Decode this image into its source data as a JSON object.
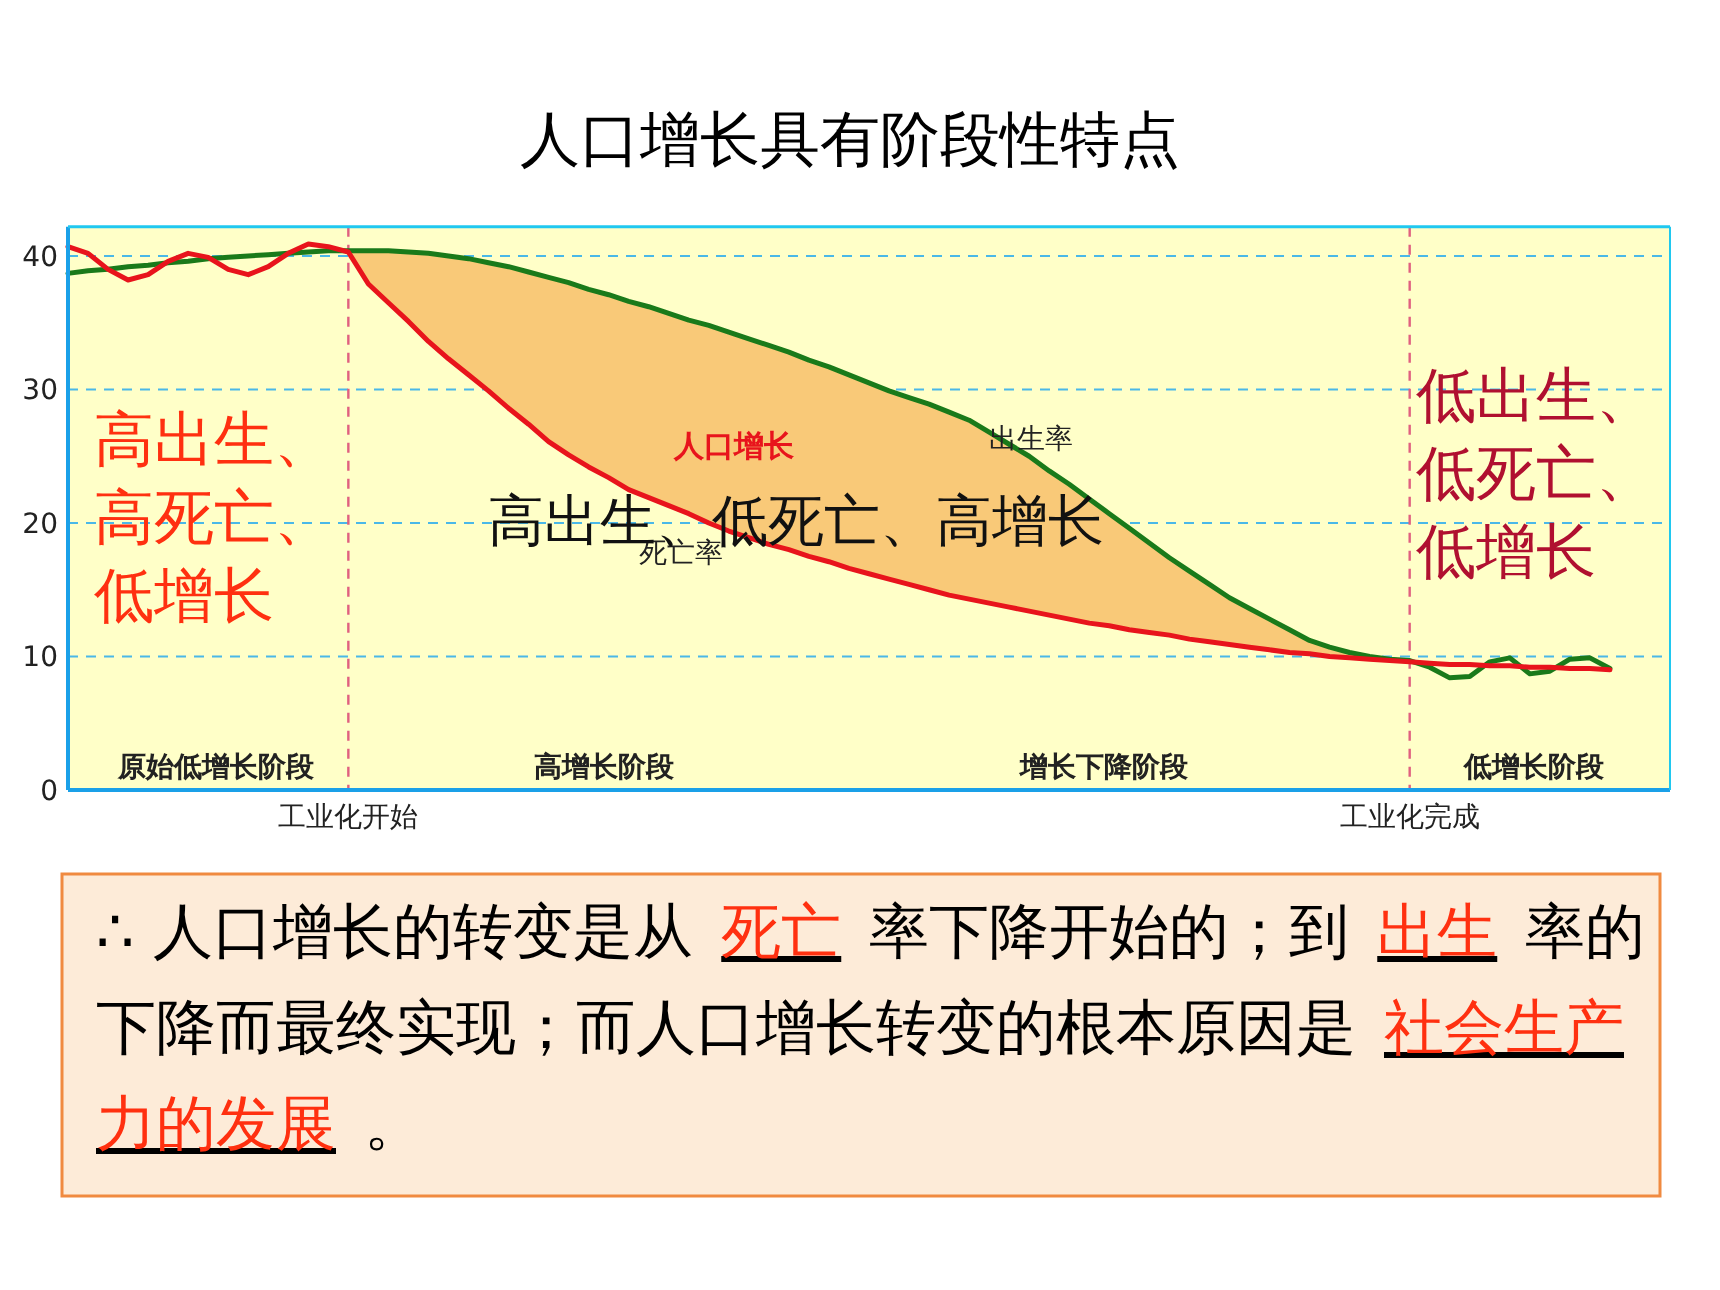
{
  "chart_data": {
    "type": "line",
    "title": "人口增长具有阶段性特点",
    "categories": [
      null,
      null,
      null,
      null,
      null,
      null,
      null,
      null,
      null,
      null,
      null,
      null,
      null,
      null,
      "工业化开始",
      null,
      null,
      null,
      null,
      null,
      null,
      null,
      null,
      null,
      null,
      null,
      null,
      null,
      null,
      null,
      null,
      null,
      null,
      null,
      null,
      null,
      null,
      null,
      null,
      null,
      null,
      null,
      null,
      null,
      null,
      null,
      null,
      null,
      null,
      null,
      null,
      null,
      null,
      null,
      null,
      null,
      null,
      null,
      null,
      null,
      null,
      null,
      null,
      null,
      null,
      null,
      null,
      "工业化完成",
      null,
      null,
      null,
      null,
      null,
      null,
      null,
      null,
      null,
      null,
      null,
      null,
      null
    ],
    "ylim": [
      0,
      42.2
    ],
    "yticks": [
      0,
      10,
      20,
      30,
      40
    ],
    "grid": "y",
    "series": [
      {
        "name": "出生率",
        "color": "#1a7a1a",
        "values": [
          38.7,
          38.9,
          39.0,
          39.2,
          39.3,
          39.5,
          39.6,
          39.8,
          39.9,
          40.0,
          40.1,
          40.2,
          40.3,
          40.4,
          40.4,
          40.4,
          40.4,
          40.3,
          40.2,
          40.0,
          39.8,
          39.5,
          39.2,
          38.8,
          38.4,
          38.0,
          37.5,
          37.1,
          36.6,
          36.2,
          35.7,
          35.2,
          34.8,
          34.3,
          33.8,
          33.3,
          32.8,
          32.2,
          31.7,
          31.1,
          30.5,
          29.9,
          29.4,
          28.9,
          28.3,
          27.7,
          26.8,
          25.9,
          25.0,
          23.9,
          22.9,
          21.8,
          20.7,
          19.6,
          18.5,
          17.4,
          16.4,
          15.4,
          14.4,
          13.6,
          12.8,
          12.0,
          11.2,
          10.7,
          10.3,
          10.0,
          9.8,
          9.7,
          9.2,
          8.4,
          8.5,
          9.6,
          9.9,
          8.7,
          8.9,
          9.8,
          9.9,
          9.1,
          null,
          null,
          null
        ],
        "lower": [
          null,
          null,
          null,
          null,
          null,
          null,
          null,
          null,
          null,
          null,
          null,
          null,
          null,
          null,
          40.3,
          37.9,
          36.5,
          35.1,
          33.6,
          32.3,
          31.1,
          29.9,
          28.6,
          27.4,
          26.1,
          25.1,
          24.2,
          23.4,
          22.5,
          21.9,
          21.3,
          20.7,
          20.0,
          19.4,
          18.9,
          18.4,
          18.0,
          17.5,
          17.1,
          16.6,
          16.2,
          15.8,
          15.4,
          15.0,
          14.6,
          14.3,
          14.0,
          13.7,
          13.4,
          13.1,
          12.8,
          12.5,
          12.3,
          12.0,
          11.8,
          11.6,
          11.3,
          11.1,
          10.9,
          10.7,
          10.5,
          10.3,
          10.2,
          10.0,
          9.9,
          9.8,
          9.7,
          9.6,
          null,
          null,
          null,
          null,
          null,
          null,
          null,
          null,
          null,
          null,
          null,
          null,
          null
        ],
        "upper": [
          null,
          null,
          null,
          null,
          null,
          null,
          null,
          null,
          null,
          null,
          null,
          null,
          null,
          null,
          40.4,
          40.4,
          40.4,
          40.3,
          40.2,
          40.0,
          39.8,
          39.5,
          39.2,
          38.8,
          38.4,
          38.0,
          37.5,
          37.1,
          36.6,
          36.2,
          35.7,
          35.2,
          34.8,
          34.3,
          33.8,
          33.3,
          32.8,
          32.2,
          31.7,
          31.1,
          30.5,
          29.9,
          29.4,
          28.9,
          28.3,
          27.7,
          26.8,
          25.9,
          25.0,
          23.9,
          22.9,
          21.8,
          20.7,
          19.6,
          18.5,
          17.4,
          16.4,
          15.4,
          14.4,
          13.6,
          12.8,
          12.0,
          11.2,
          10.7,
          10.3,
          10.0,
          9.8,
          9.7,
          null,
          null,
          null,
          null,
          null,
          null,
          null,
          null,
          null,
          null,
          null,
          null,
          null
        ]
      },
      {
        "name": "死亡率",
        "color": "#e8141c",
        "values": [
          40.7,
          40.2,
          39.0,
          38.2,
          38.6,
          39.6,
          40.2,
          39.9,
          39.0,
          38.6,
          39.2,
          40.2,
          40.9,
          40.7,
          40.3,
          37.9,
          36.5,
          35.1,
          33.6,
          32.3,
          31.1,
          29.9,
          28.6,
          27.4,
          26.1,
          25.1,
          24.2,
          23.4,
          22.5,
          21.9,
          21.3,
          20.7,
          20.0,
          19.4,
          18.9,
          18.4,
          18.0,
          17.5,
          17.1,
          16.6,
          16.2,
          15.8,
          15.4,
          15.0,
          14.6,
          14.3,
          14.0,
          13.7,
          13.4,
          13.1,
          12.8,
          12.5,
          12.3,
          12.0,
          11.8,
          11.6,
          11.3,
          11.1,
          10.9,
          10.7,
          10.5,
          10.3,
          10.2,
          10.0,
          9.9,
          9.8,
          9.7,
          9.6,
          9.5,
          9.4,
          9.4,
          9.3,
          9.3,
          9.2,
          9.2,
          9.1,
          9.1,
          9.0,
          null,
          null,
          null
        ]
      }
    ],
    "ref_lines": [
      {
        "axis": "x",
        "value": "工业化开始",
        "color": "#e06080",
        "line_style": "dashed"
      },
      {
        "axis": "x",
        "value": "工业化完成",
        "color": "#e06080",
        "line_style": "dashed"
      }
    ],
    "annotations": [
      "人口增长",
      "高出生、高死亡、低增长",
      "高出生、低死亡、高增长",
      "低出生、低死亡、低增长",
      "原始低增长阶段",
      "高增长阶段",
      "增长下降阶段",
      "低增长阶段",
      "∴ 人口增长的转变是从",
      "死亡",
      "率下降开始的；到",
      "出生",
      "率的下降而最终实现；而人口增长转变的根本原因是",
      "社会生产力的发展",
      "。"
    ]
  }
}
